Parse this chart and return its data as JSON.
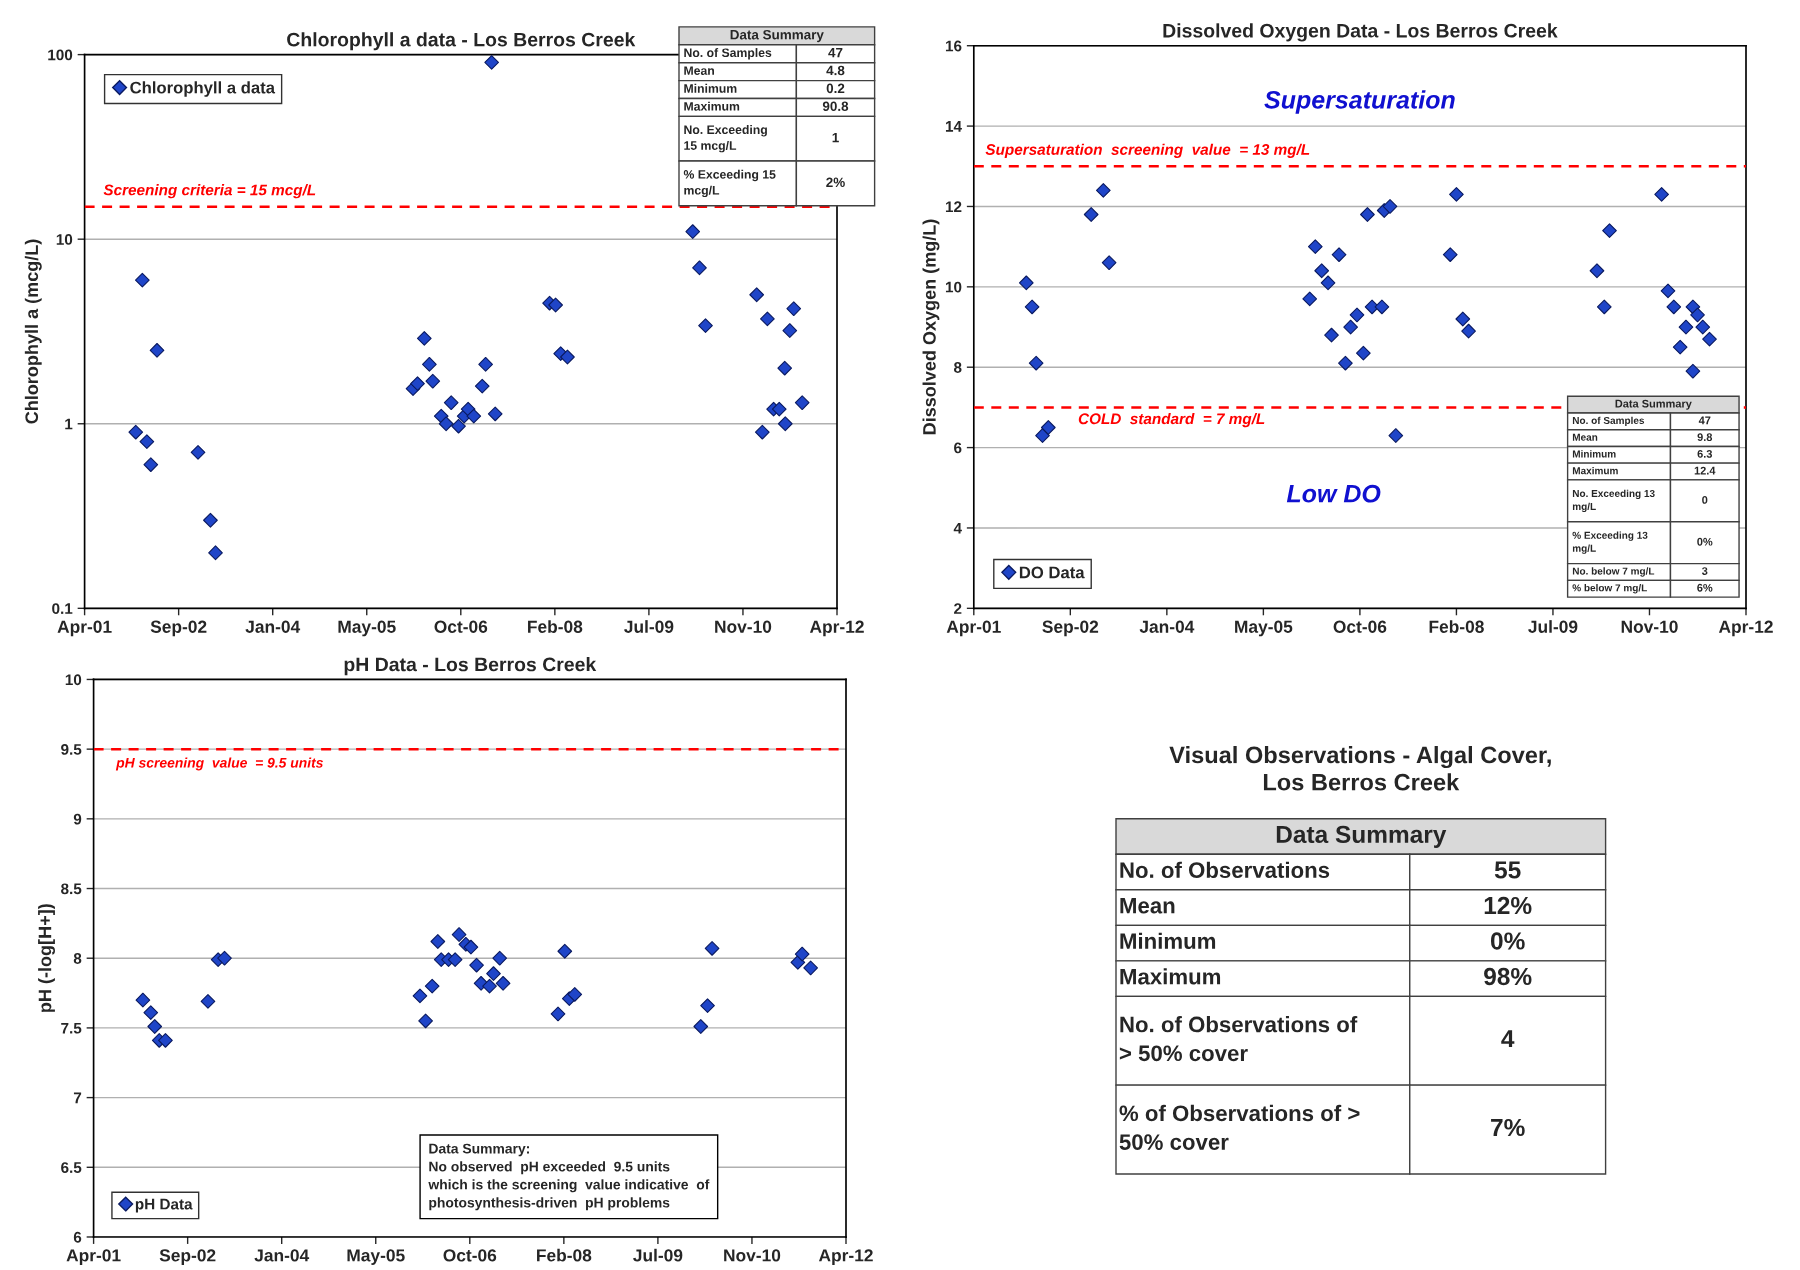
{
  "chart_data": [
    {
      "type": "scatter",
      "title": "Chlorophyll a data - Los Berros Creek",
      "ylabel": "Chlorophyll a (mcg/L)",
      "log": "y",
      "grid": "y",
      "legend": "top left",
      "marker": "diamond",
      "xlim": [
        "2001-04-19",
        "2012-04-01"
      ],
      "xticks": [
        {
          "value": "2001-04-19",
          "label": "Apr-01"
        },
        {
          "value": "2002-09-01",
          "label": "Sep-02"
        },
        {
          "value": "2004-01-14",
          "label": "Jan-04"
        },
        {
          "value": "2005-05-28",
          "label": "May-05"
        },
        {
          "value": "2006-10-10",
          "label": "Oct-06"
        },
        {
          "value": "2008-02-22",
          "label": "Feb-08"
        },
        {
          "value": "2009-07-06",
          "label": "Jul-09"
        },
        {
          "value": "2010-11-18",
          "label": "Nov-10"
        },
        {
          "value": "2012-04-01",
          "label": "Apr-12"
        }
      ],
      "ylim": [
        0.1,
        100
      ],
      "yticks": [
        0.1,
        1,
        10,
        100
      ],
      "series": [
        {
          "name": "Chlorophyll a data",
          "color": "#1f45c8",
          "x": [
            "2002-01-16",
            "2002-02-20",
            "2002-03-16",
            "2002-04-06",
            "2002-05-09",
            "2002-12-13",
            "2003-02-17",
            "2003-03-16",
            "2006-01-29",
            "2006-02-22",
            "2006-03-30",
            "2006-04-26",
            "2006-05-14",
            "2006-06-28",
            "2006-07-24",
            "2006-08-20",
            "2006-09-28",
            "2006-10-28",
            "2006-11-18",
            "2006-12-18",
            "2007-02-01",
            "2007-02-19",
            "2007-03-23",
            "2007-04-11",
            "2008-01-25",
            "2008-02-26",
            "2008-03-24",
            "2008-04-29",
            "2010-02-24",
            "2010-04-01",
            "2010-05-03",
            "2011-01-30",
            "2011-03-01",
            "2011-03-28",
            "2011-04-30",
            "2011-05-30",
            "2011-06-28",
            "2011-07-01",
            "2011-07-25",
            "2011-08-15",
            "2011-09-29"
          ],
          "values": [
            0.9,
            6,
            0.8,
            0.6,
            2.5,
            0.7,
            0.3,
            0.2,
            1.55,
            1.65,
            2.9,
            2.1,
            1.7,
            1.1,
            1.0,
            1.3,
            0.97,
            1.1,
            1.2,
            1.1,
            1.6,
            2.1,
            90.8,
            1.13,
            4.5,
            4.4,
            2.4,
            2.3,
            11,
            7,
            3.4,
            5,
            0.9,
            3.7,
            1.2,
            1.2,
            2,
            1,
            3.2,
            4.2,
            1.3
          ]
        }
      ],
      "ref_lines": [
        {
          "axis": "y",
          "value": 15,
          "label": "Screening criteria = 15 mcg/L",
          "color": "#ff0000",
          "line_style": "dashed"
        }
      ],
      "annotations": [
        "Data Summary",
        "No. of Samples",
        "47",
        "Mean",
        "4.8",
        "Minimum",
        "0.2",
        "Maximum",
        "90.8",
        "No. Exceeding\n15 mcg/L",
        "1",
        "% Exceeding 15\nmcg/L",
        "2%"
      ]
    },
    {
      "type": "scatter",
      "title": "Dissolved Oxygen Data - Los Berros Creek",
      "ylabel": "Dissolved Oxygen (mg/L)",
      "grid": "y",
      "legend": "bottom left",
      "marker": "diamond",
      "xlim": [
        "2001-04-19",
        "2012-04-01"
      ],
      "xticks": [
        {
          "value": "2001-04-19",
          "label": "Apr-01"
        },
        {
          "value": "2002-09-01",
          "label": "Sep-02"
        },
        {
          "value": "2004-01-14",
          "label": "Jan-04"
        },
        {
          "value": "2005-05-28",
          "label": "May-05"
        },
        {
          "value": "2006-10-10",
          "label": "Oct-06"
        },
        {
          "value": "2008-02-22",
          "label": "Feb-08"
        },
        {
          "value": "2009-07-06",
          "label": "Jul-09"
        },
        {
          "value": "2010-11-18",
          "label": "Nov-10"
        },
        {
          "value": "2012-04-01",
          "label": "Apr-12"
        }
      ],
      "ylim": [
        2,
        16
      ],
      "yticks": [
        2,
        4,
        6,
        8,
        10,
        12,
        14,
        16
      ],
      "series": [
        {
          "name": "DO Data",
          "color": "#1f45c8",
          "x": [
            "2002-01-16",
            "2002-02-15",
            "2002-03-08",
            "2002-04-10",
            "2002-05-10",
            "2002-12-18",
            "2003-02-19",
            "2003-03-21",
            "2006-01-23",
            "2006-02-21",
            "2006-03-26",
            "2006-04-28",
            "2006-05-16",
            "2006-06-24",
            "2006-07-27",
            "2006-08-23",
            "2006-09-25",
            "2006-10-28",
            "2006-11-18",
            "2006-12-12",
            "2007-02-01",
            "2007-02-13",
            "2007-03-15",
            "2007-04-14",
            "2008-01-21",
            "2008-02-22",
            "2008-03-26",
            "2008-04-25",
            "2010-02-19",
            "2010-03-29",
            "2010-04-25",
            "2011-01-20",
            "2011-02-22",
            "2011-03-24",
            "2011-04-26",
            "2011-05-26",
            "2011-07-01",
            "2011-07-01",
            "2011-07-25",
            "2011-08-21",
            "2011-09-25"
          ],
          "values": [
            10.1,
            9.5,
            8.1,
            6.3,
            6.5,
            11.8,
            12.4,
            10.6,
            9.7,
            11,
            10.4,
            10.1,
            8.8,
            10.8,
            8.1,
            9,
            9.3,
            8.35,
            11.8,
            9.5,
            9.5,
            11.9,
            12,
            6.3,
            10.8,
            12.3,
            9.2,
            8.9,
            10.4,
            9.5,
            11.4,
            12.3,
            9.9,
            9.5,
            8.5,
            9,
            7.9,
            9.5,
            9.3,
            9,
            8.7
          ]
        }
      ],
      "ref_lines": [
        {
          "axis": "y",
          "value": 13,
          "label": "Supersaturation  screening  value  = 13 mg/L",
          "color": "#ff0000",
          "line_style": "dashed"
        },
        {
          "axis": "y",
          "value": 7,
          "label": "COLD  standard  = 7 mg/L",
          "color": "#ff0000",
          "line_style": "dashed"
        }
      ],
      "annotations": [
        "Supersaturation",
        "Low DO",
        "Data Summary",
        "No. of Samples",
        "47",
        "Mean",
        "9.8",
        "Minimum",
        "6.3",
        "Maximum",
        "12.4",
        "No. Exceeding 13\nmg/L",
        "0",
        "% Exceeding 13\nmg/L",
        "0%",
        "No. below 7 mg/L",
        "3",
        "% below 7 mg/L",
        "6%"
      ]
    },
    {
      "type": "scatter",
      "title": "pH Data - Los Berros Creek",
      "ylabel": "pH (-log[H+])",
      "grid": "y",
      "legend": "bottom left",
      "marker": "diamond",
      "xlim": [
        "2001-04-19",
        "2012-04-01"
      ],
      "xticks": [
        {
          "value": "2001-04-19",
          "label": "Apr-01"
        },
        {
          "value": "2002-09-01",
          "label": "Sep-02"
        },
        {
          "value": "2004-01-14",
          "label": "Jan-04"
        },
        {
          "value": "2005-05-28",
          "label": "May-05"
        },
        {
          "value": "2006-10-10",
          "label": "Oct-06"
        },
        {
          "value": "2008-02-22",
          "label": "Feb-08"
        },
        {
          "value": "2009-07-06",
          "label": "Jul-09"
        },
        {
          "value": "2010-11-18",
          "label": "Nov-10"
        },
        {
          "value": "2012-04-01",
          "label": "Apr-12"
        }
      ],
      "ylim": [
        6,
        10
      ],
      "yticks": [
        6,
        6.5,
        7,
        7.5,
        8,
        8.5,
        9,
        9.5,
        10
      ],
      "series": [
        {
          "name": "pH Data",
          "color": "#1f45c8",
          "x": [
            "2002-01-06",
            "2002-02-17",
            "2002-03-10",
            "2002-04-03",
            "2002-05-06",
            "2002-12-18",
            "2003-02-10",
            "2003-03-16",
            "2006-01-18",
            "2006-02-17",
            "2006-03-24",
            "2006-04-23",
            "2006-05-11",
            "2006-06-19",
            "2006-07-24",
            "2006-08-14",
            "2006-09-19",
            "2006-10-16",
            "2006-11-15",
            "2006-12-09",
            "2007-01-23",
            "2007-02-13",
            "2007-03-18",
            "2007-04-05",
            "2008-01-22",
            "2008-02-27",
            "2008-03-22",
            "2008-04-20",
            "2010-02-19",
            "2010-03-27",
            "2010-04-20",
            "2011-07-20",
            "2011-08-12",
            "2011-09-26"
          ],
          "values": [
            7.7,
            7.61,
            7.51,
            7.41,
            7.41,
            7.69,
            7.99,
            8.0,
            7.73,
            7.55,
            7.8,
            8.12,
            7.99,
            7.99,
            7.99,
            8.17,
            8.1,
            8.08,
            7.95,
            7.82,
            7.8,
            7.89,
            8.0,
            7.82,
            7.6,
            8.05,
            7.71,
            7.74,
            7.51,
            7.66,
            8.07,
            7.97,
            8.03,
            7.93
          ]
        }
      ],
      "ref_lines": [
        {
          "axis": "y",
          "value": 9.5,
          "label": "pH screening  value  = 9.5 units",
          "color": "#ff0000",
          "line_style": "dashed"
        }
      ],
      "annotations": [
        "Data Summary:\nNo observed  pH exceeded  9.5 units\nwhich is the screening  value indicative  of\nphotosynthesis-driven  pH problems"
      ]
    },
    {
      "type": "other",
      "title": "Visual Observations - Algal Cover,\nLos Berros Creek",
      "annotations": [
        "Data Summary",
        "No. of Observations",
        "55",
        "Mean",
        "12%",
        "Minimum",
        "0%",
        "Maximum",
        "98%",
        "No. of Observations of\n> 50% cover",
        "4",
        "% of Observations of >\n50% cover",
        "7%"
      ]
    }
  ]
}
